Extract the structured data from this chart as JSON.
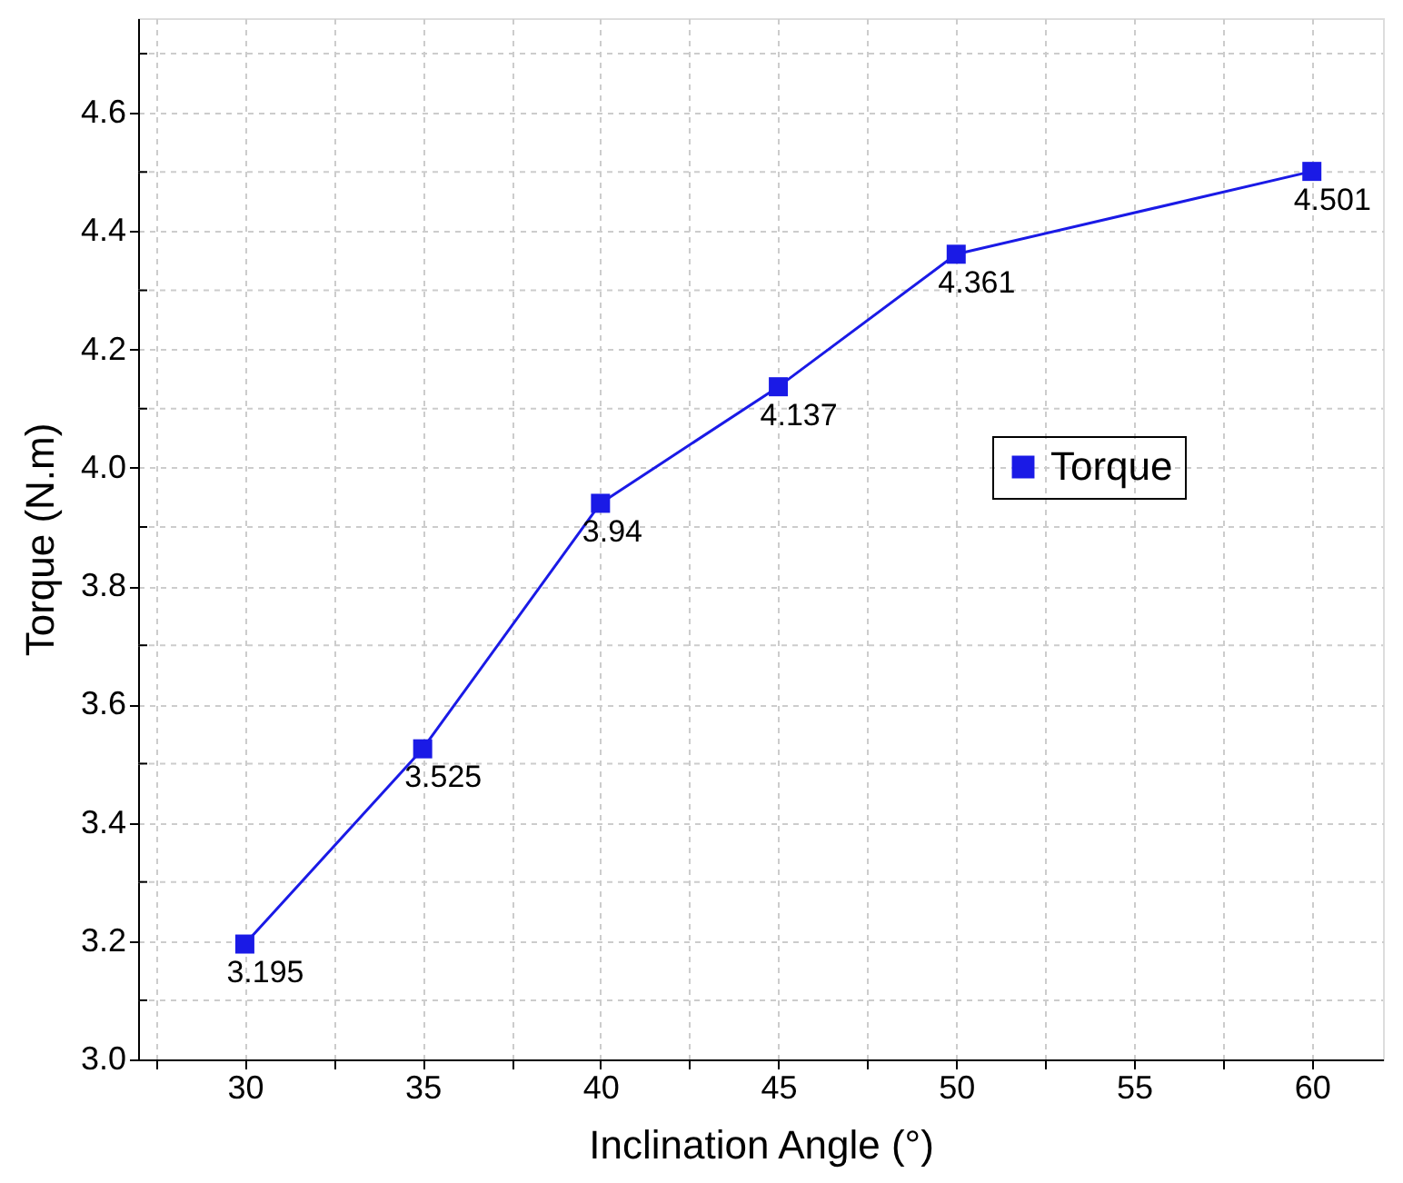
{
  "chart_data": {
    "type": "line",
    "xlabel": "Inclination Angle (°)",
    "ylabel": "Torque (N.m)",
    "x": [
      30,
      35,
      40,
      45,
      50,
      60
    ],
    "series": [
      {
        "name": "Torque",
        "color": "#1a1ae6",
        "values": [
          3.195,
          3.525,
          3.94,
          4.137,
          4.361,
          4.501
        ]
      }
    ],
    "xlim": [
      27,
      62
    ],
    "xticks": [
      {
        "value": 27.5,
        "label": null
      },
      30,
      {
        "value": 32.5,
        "label": null
      },
      35,
      {
        "value": 37.5,
        "label": null
      },
      40,
      {
        "value": 42.5,
        "label": null
      },
      45,
      {
        "value": 47.5,
        "label": null
      },
      50,
      {
        "value": 52.5,
        "label": null
      },
      55,
      {
        "value": 57.5,
        "label": null
      },
      60
    ],
    "ylim": [
      3.0,
      4.76
    ],
    "yticks": [
      {
        "value": 3.0,
        "label": "3.0"
      },
      {
        "value": 3.1,
        "label": null
      },
      3.2,
      {
        "value": 3.3,
        "label": null
      },
      3.4,
      {
        "value": 3.5,
        "label": null
      },
      3.6,
      {
        "value": 3.7,
        "label": null
      },
      3.8,
      {
        "value": 3.9,
        "label": null
      },
      {
        "value": 4.0,
        "label": "4.0"
      },
      {
        "value": 4.1,
        "label": null
      },
      4.2,
      {
        "value": 4.3,
        "label": null
      },
      4.4,
      {
        "value": 4.5,
        "label": null
      },
      4.6,
      {
        "value": 4.7,
        "label": null
      }
    ],
    "grid": true,
    "legend": "right",
    "marker": "square",
    "line_style": "solid",
    "data_labels": true
  }
}
